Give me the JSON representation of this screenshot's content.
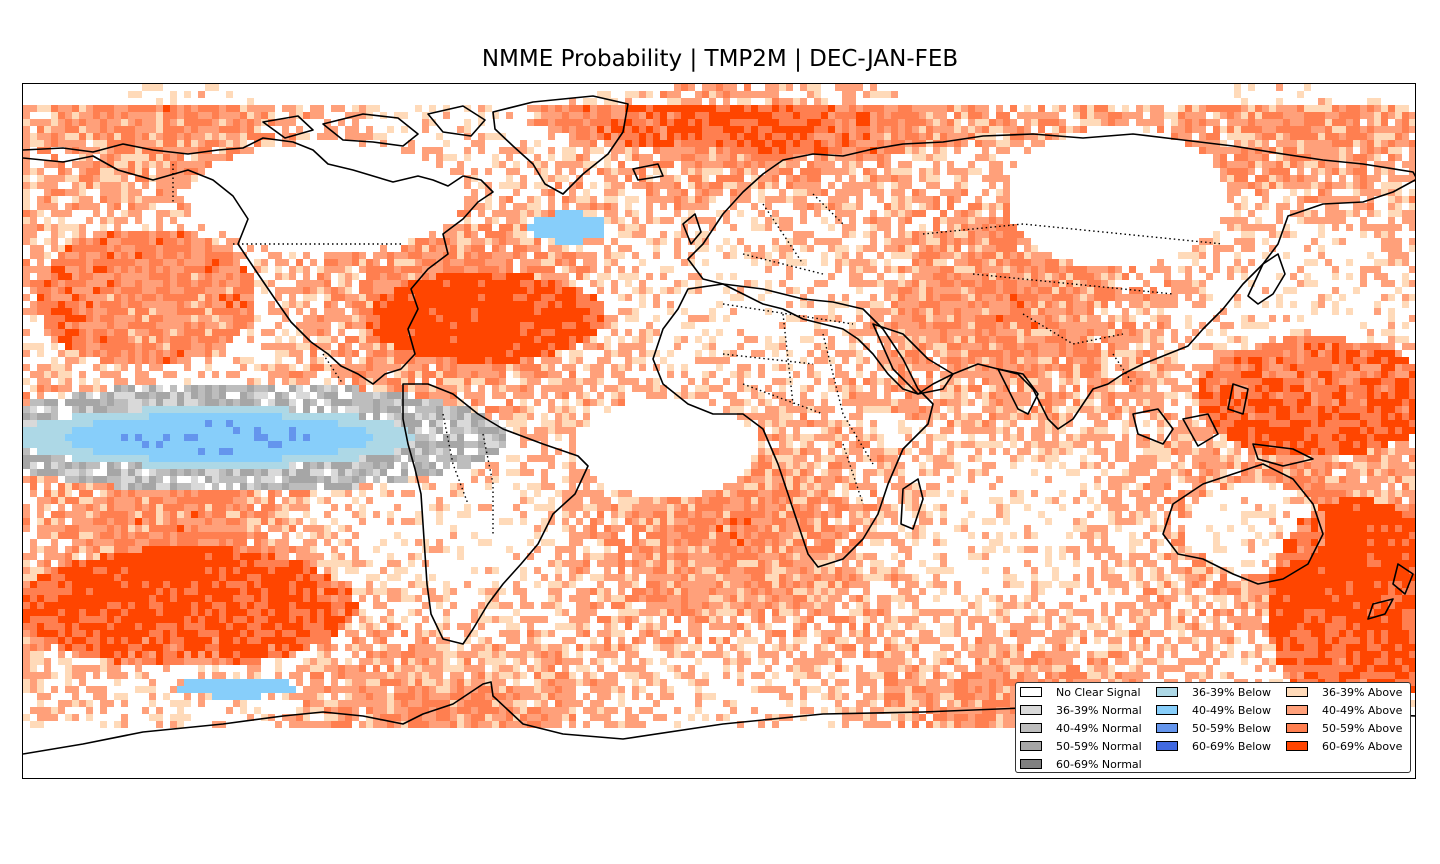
{
  "title": "NMME Probability | TMP2M | DEC-JAN-FEB",
  "map": {
    "projection": "plate-carree",
    "extent_lon": [
      -180,
      180
    ],
    "extent_lat": [
      -90,
      90
    ],
    "variable": "TMP2M",
    "season": "DEC-JAN-FEB"
  },
  "legend": {
    "columns": [
      [
        {
          "label": "No Clear Signal",
          "color": "#ffffff"
        },
        {
          "label": "36-39% Normal",
          "color": "#d9d9d9"
        },
        {
          "label": "40-49% Normal",
          "color": "#bdbdbd"
        },
        {
          "label": "50-59% Normal",
          "color": "#a6a6a6"
        },
        {
          "label": "60-69% Normal",
          "color": "#808080"
        }
      ],
      [
        {
          "label": "36-39% Below",
          "color": "#add8e6"
        },
        {
          "label": "40-49% Below",
          "color": "#87cefa"
        },
        {
          "label": "50-59% Below",
          "color": "#6495ed"
        },
        {
          "label": "60-69% Below",
          "color": "#4169e1"
        }
      ],
      [
        {
          "label": "36-39% Above",
          "color": "#ffdab9"
        },
        {
          "label": "40-49% Above",
          "color": "#ffa07a"
        },
        {
          "label": "50-59% Above",
          "color": "#ff7f50"
        },
        {
          "label": "60-69% Above",
          "color": "#ff4500"
        }
      ]
    ]
  }
}
